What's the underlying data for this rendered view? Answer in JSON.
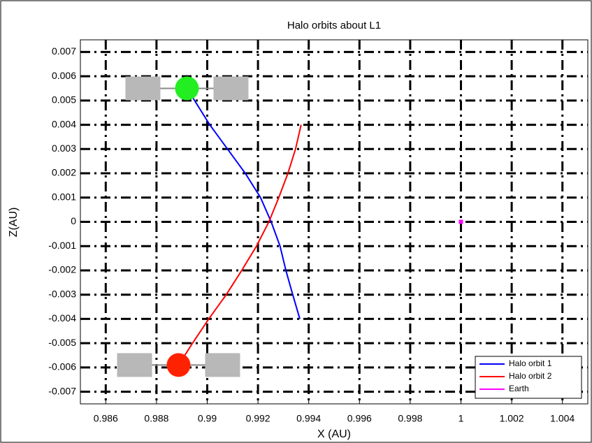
{
  "chart_data": {
    "type": "line",
    "title": "Halo orbits about L1",
    "x_label": "X (AU)",
    "y_label": "Z(AU)",
    "xlim": [
      0.985,
      1.005
    ],
    "ylim": [
      -0.0075,
      0.0075
    ],
    "xticks": [
      0.986,
      0.988,
      0.99,
      0.992,
      0.994,
      0.996,
      0.998,
      1,
      1.002,
      1.004
    ],
    "yticks": [
      -0.007,
      -0.006,
      -0.005,
      -0.004,
      -0.003,
      -0.002,
      -0.001,
      0,
      0.001,
      0.002,
      0.003,
      0.004,
      0.005,
      0.006,
      0.007
    ],
    "grid": true,
    "legend": "lower right",
    "series": [
      {
        "name": "Halo orbit 1",
        "color": "#0000ff",
        "x": [
          0.9892,
          0.9901,
          0.9908,
          0.9915,
          0.9921,
          0.99252,
          0.99287,
          0.9931,
          0.99337,
          0.99365
        ],
        "values": [
          0.0055,
          0.004,
          0.003,
          0.002,
          0.001,
          0,
          -0.001,
          -0.002,
          -0.003,
          -0.004
        ]
      },
      {
        "name": "Halo orbit 2",
        "color": "#ff0000",
        "x": [
          0.9937,
          0.99348,
          0.99318,
          0.99282,
          0.99243,
          0.99194,
          0.99136,
          0.99075,
          0.99006,
          0.98942,
          0.98887
        ],
        "values": [
          0.004,
          0.003,
          0.002,
          0.001,
          0,
          -0.001,
          -0.002,
          -0.003,
          -0.004,
          -0.005,
          -0.0059
        ]
      },
      {
        "name": "Earth",
        "color": "#ff00ff",
        "x": [
          1
        ],
        "values": [
          0
        ]
      }
    ]
  }
}
